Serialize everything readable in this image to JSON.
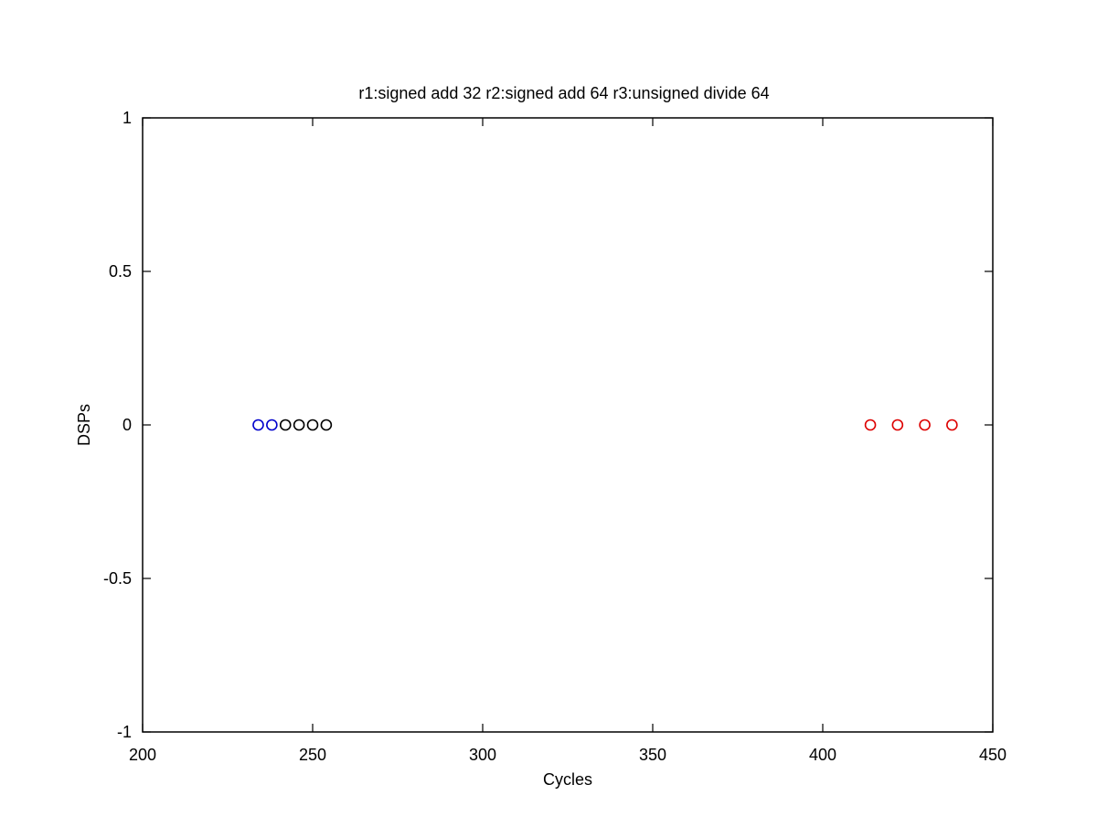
{
  "chart_data": {
    "type": "scatter",
    "title": "r1:signed add 32 r2:signed add 64 r3:unsigned divide 64",
    "xlabel": "Cycles",
    "ylabel": "DSPs",
    "xlim": [
      200,
      450
    ],
    "ylim": [
      -1,
      1
    ],
    "xticks": [
      200,
      250,
      300,
      350,
      400,
      450
    ],
    "xtick_labels": [
      "200",
      "250",
      "300",
      "350",
      "400",
      "450"
    ],
    "yticks": [
      -1,
      -0.5,
      0,
      0.5,
      1
    ],
    "ytick_labels": [
      "-1",
      "-0.5",
      "0",
      "0.5",
      "1"
    ],
    "grid": false,
    "marker": "open-circle",
    "series": [
      {
        "color": "#0000cc",
        "points": [
          [
            234,
            0
          ],
          [
            238,
            0
          ]
        ]
      },
      {
        "color": "#000000",
        "points": [
          [
            242,
            0
          ],
          [
            246,
            0
          ],
          [
            250,
            0
          ],
          [
            254,
            0
          ]
        ]
      },
      {
        "color": "#dd0000",
        "points": [
          [
            414,
            0
          ],
          [
            422,
            0
          ],
          [
            430,
            0
          ],
          [
            438,
            0
          ]
        ]
      }
    ]
  }
}
